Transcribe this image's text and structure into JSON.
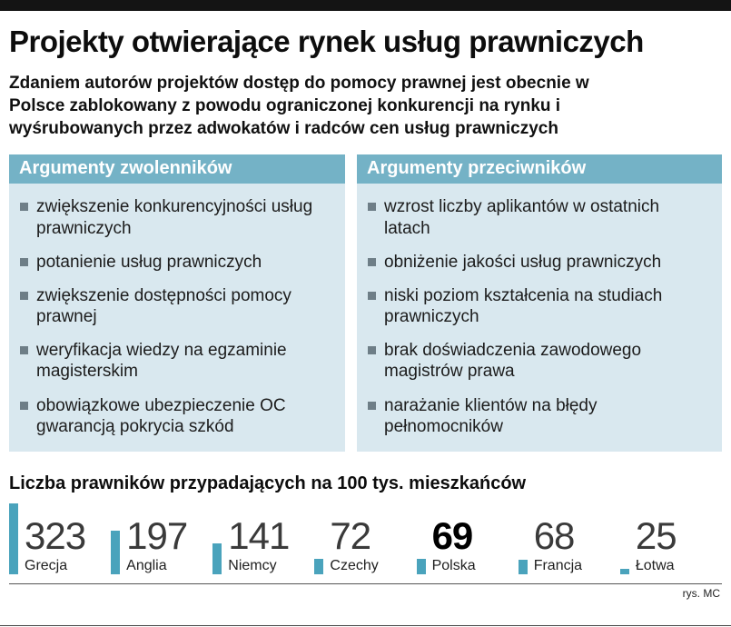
{
  "header": {
    "title": "Projekty otwierające rynek usług prawniczych",
    "subtitle": "Zdaniem autorów projektów dostęp do pomocy prawnej jest obecnie w Polsce zablokowany z powodu ograniczonej konkurencji na rynku i wyśrubowanych przez adwokatów i radców cen usług prawniczych"
  },
  "arguments": {
    "supporters": {
      "header": "Argumenty zwolenników",
      "items": [
        "zwiększenie konkurencyjności usług prawniczych",
        "potanienie usług prawniczych",
        "zwiększenie dostępności pomocy prawnej",
        "weryfikacja wiedzy na egzaminie magisterskim",
        "obowiązkowe ubezpieczenie OC gwarancją pokrycia szkód"
      ]
    },
    "opponents": {
      "header": "Argumenty przeciwników",
      "items": [
        "wzrost liczby aplikantów w ostatnich latach",
        "obniżenie jakości usług prawniczych",
        "niski poziom kształcenia na studiach prawniczych",
        "brak doświadczenia zawodowego magistrów prawa",
        "narażanie klientów na błędy pełnomocników"
      ]
    }
  },
  "chart_data": {
    "type": "bar",
    "title": "Liczba prawników przypadających na 100 tys. mieszkańców",
    "categories": [
      "Grecja",
      "Anglia",
      "Niemcy",
      "Czechy",
      "Polska",
      "Francja",
      "Łotwa"
    ],
    "values": [
      323,
      197,
      141,
      72,
      69,
      68,
      25
    ],
    "highlight": "Polska",
    "ylim": [
      0,
      323
    ],
    "bar_color": "#4aa3bc",
    "legend": "none",
    "grid": false
  },
  "footer": {
    "credit": "rys. MC"
  },
  "colors": {
    "header_bg": "#74b2c6",
    "panel_bg": "#d9e8ef",
    "bullet": "#6e7e87",
    "bar": "#4aa3bc",
    "top_bar": "#141414"
  }
}
